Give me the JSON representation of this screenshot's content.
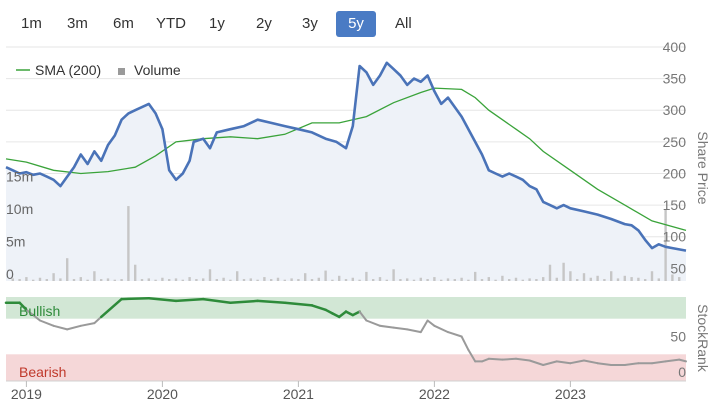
{
  "range_buttons": [
    {
      "label": "1m",
      "active": false
    },
    {
      "label": "3m",
      "active": false
    },
    {
      "label": "6m",
      "active": false
    },
    {
      "label": "YTD",
      "active": false
    },
    {
      "label": "1y",
      "active": false
    },
    {
      "label": "2y",
      "active": false
    },
    {
      "label": "3y",
      "active": false
    },
    {
      "label": "5y",
      "active": true
    },
    {
      "label": "All",
      "active": false
    }
  ],
  "colors": {
    "price_line": "#4a73b8",
    "sma_line": "#3aa33a",
    "volume_bar": "#c6c6c6",
    "bullish_band": "#d2e7d5",
    "bearish_band": "#f5d7d8",
    "stockrank_bullish": "#2e8b3a",
    "stockrank_other": "#9a9a9a",
    "active_button": "#4a7bc4"
  },
  "chart_data": {
    "type": "line",
    "legend": {
      "placement": "top-left",
      "entries": [
        {
          "label": "SMA (200)",
          "marker": "line",
          "color": "#3aa33a"
        },
        {
          "label": "Volume",
          "marker": "square",
          "color": "#9a9a9a"
        }
      ]
    },
    "x_axis": {
      "ticks": [
        "2019",
        "2020",
        "2021",
        "2022",
        "2023"
      ],
      "range": [
        2018.85,
        2023.85
      ]
    },
    "price_axis": {
      "label": "Share Price",
      "ticks": [
        50,
        100,
        150,
        200,
        250,
        300,
        350,
        400
      ],
      "range": [
        30,
        400
      ]
    },
    "volume_axis": {
      "ticks": [
        "0",
        "5m",
        "10m",
        "15m"
      ],
      "values": [
        0,
        5,
        10,
        15
      ],
      "unit": "m"
    },
    "stockrank_axis": {
      "label": "StockRank",
      "ticks": [
        0,
        50
      ],
      "range": [
        0,
        100
      ]
    },
    "bands": [
      {
        "label": "Bullish",
        "from": 70,
        "to": 100
      },
      {
        "label": "Bearish",
        "from": 0,
        "to": 30
      }
    ],
    "series": [
      {
        "name": "Price",
        "x": [
          2018.85,
          2018.9,
          2018.95,
          2019.0,
          2019.05,
          2019.1,
          2019.15,
          2019.2,
          2019.25,
          2019.3,
          2019.35,
          2019.4,
          2019.45,
          2019.5,
          2019.55,
          2019.6,
          2019.65,
          2019.7,
          2019.75,
          2019.8,
          2019.85,
          2019.9,
          2019.95,
          2020.0,
          2020.05,
          2020.1,
          2020.15,
          2020.2,
          2020.23,
          2020.3,
          2020.35,
          2020.4,
          2020.5,
          2020.6,
          2020.7,
          2020.8,
          2020.9,
          2021.0,
          2021.1,
          2021.2,
          2021.28,
          2021.35,
          2021.4,
          2021.45,
          2021.5,
          2021.55,
          2021.6,
          2021.65,
          2021.7,
          2021.75,
          2021.8,
          2021.85,
          2021.9,
          2021.95,
          2022.0,
          2022.05,
          2022.1,
          2022.15,
          2022.2,
          2022.25,
          2022.3,
          2022.35,
          2022.4,
          2022.45,
          2022.5,
          2022.55,
          2022.6,
          2022.65,
          2022.7,
          2022.75,
          2022.8,
          2022.85,
          2022.9,
          2022.95,
          2023.0,
          2023.1,
          2023.2,
          2023.3,
          2023.4,
          2023.45,
          2023.5,
          2023.55,
          2023.6,
          2023.65,
          2023.7,
          2023.75,
          2023.8,
          2023.85
        ],
        "values": [
          210,
          205,
          200,
          202,
          198,
          200,
          195,
          190,
          180,
          195,
          210,
          230,
          215,
          235,
          220,
          245,
          260,
          285,
          295,
          300,
          305,
          310,
          295,
          270,
          205,
          190,
          200,
          220,
          250,
          255,
          240,
          265,
          270,
          275,
          285,
          280,
          275,
          270,
          265,
          255,
          250,
          240,
          275,
          370,
          360,
          340,
          355,
          375,
          365,
          355,
          340,
          350,
          345,
          355,
          330,
          310,
          320,
          305,
          290,
          270,
          250,
          230,
          205,
          200,
          195,
          200,
          195,
          190,
          180,
          175,
          155,
          150,
          145,
          150,
          145,
          140,
          135,
          128,
          120,
          118,
          110,
          95,
          82,
          88,
          84,
          82,
          80,
          78
        ]
      },
      {
        "name": "SMA (200)",
        "x": [
          2018.85,
          2019.0,
          2019.2,
          2019.4,
          2019.6,
          2019.8,
          2019.95,
          2020.1,
          2020.3,
          2020.5,
          2020.7,
          2020.9,
          2021.1,
          2021.3,
          2021.5,
          2021.7,
          2021.9,
          2022.0,
          2022.2,
          2022.3,
          2022.4,
          2022.5,
          2022.6,
          2022.7,
          2022.8,
          2023.0,
          2023.2,
          2023.4,
          2023.6,
          2023.85
        ],
        "values": [
          223,
          218,
          205,
          200,
          203,
          210,
          228,
          250,
          255,
          258,
          255,
          262,
          280,
          280,
          290,
          312,
          328,
          335,
          333,
          320,
          300,
          285,
          270,
          255,
          235,
          205,
          175,
          150,
          125,
          110
        ]
      },
      {
        "name": "StockRank",
        "x": [
          2018.85,
          2018.95,
          2019.0,
          2019.1,
          2019.2,
          2019.3,
          2019.4,
          2019.5,
          2019.55,
          2019.7,
          2019.9,
          2020.1,
          2020.3,
          2020.5,
          2020.7,
          2020.9,
          2021.1,
          2021.2,
          2021.25,
          2021.3,
          2021.35,
          2021.4,
          2021.45,
          2021.5,
          2021.6,
          2021.7,
          2021.8,
          2021.9,
          2021.95,
          2022.0,
          2022.1,
          2022.2,
          2022.25,
          2022.3,
          2022.35,
          2022.4,
          2022.5,
          2022.6,
          2022.7,
          2022.8,
          2022.9,
          2023.0,
          2023.1,
          2023.2,
          2023.3,
          2023.4,
          2023.5,
          2023.6,
          2023.7,
          2023.8,
          2023.85
        ],
        "values": [
          88,
          88,
          80,
          68,
          62,
          58,
          62,
          65,
          72,
          92,
          93,
          90,
          92,
          88,
          90,
          88,
          85,
          80,
          76,
          72,
          78,
          74,
          78,
          68,
          62,
          60,
          58,
          55,
          68,
          62,
          55,
          50,
          35,
          22,
          22,
          25,
          24,
          25,
          23,
          18,
          22,
          20,
          23,
          20,
          18,
          18,
          20,
          20,
          22,
          24,
          22
        ]
      }
    ],
    "volume": {
      "x": [
        2018.9,
        2018.95,
        2019.0,
        2019.05,
        2019.1,
        2019.15,
        2019.2,
        2019.25,
        2019.3,
        2019.35,
        2019.4,
        2019.45,
        2019.5,
        2019.55,
        2019.6,
        2019.65,
        2019.7,
        2019.75,
        2019.8,
        2019.85,
        2019.9,
        2019.95,
        2020.0,
        2020.05,
        2020.1,
        2020.15,
        2020.2,
        2020.25,
        2020.3,
        2020.35,
        2020.4,
        2020.45,
        2020.5,
        2020.55,
        2020.6,
        2020.65,
        2020.7,
        2020.75,
        2020.8,
        2020.85,
        2020.9,
        2020.95,
        2021.0,
        2021.05,
        2021.1,
        2021.15,
        2021.2,
        2021.25,
        2021.3,
        2021.35,
        2021.4,
        2021.45,
        2021.5,
        2021.55,
        2021.6,
        2021.65,
        2021.7,
        2021.75,
        2021.8,
        2021.85,
        2021.9,
        2021.95,
        2022.0,
        2022.05,
        2022.1,
        2022.15,
        2022.2,
        2022.25,
        2022.3,
        2022.35,
        2022.4,
        2022.45,
        2022.5,
        2022.55,
        2022.6,
        2022.65,
        2022.7,
        2022.75,
        2022.8,
        2022.85,
        2022.9,
        2022.95,
        2023.0,
        2023.05,
        2023.1,
        2023.15,
        2023.2,
        2023.25,
        2023.3,
        2023.35,
        2023.4,
        2023.45,
        2023.5,
        2023.55,
        2023.6,
        2023.65,
        2023.7,
        2023.75,
        2023.8
      ],
      "values": [
        0.4,
        0.3,
        0.6,
        0.2,
        0.5,
        0.3,
        1.2,
        0.4,
        3.5,
        0.3,
        0.6,
        0.2,
        1.5,
        0.3,
        0.4,
        0.2,
        0.3,
        11.5,
        2.5,
        0.3,
        0.4,
        0.2,
        0.5,
        0.3,
        0.4,
        0.2,
        0.6,
        0.3,
        0.4,
        1.8,
        0.3,
        0.5,
        0.2,
        1.5,
        0.3,
        0.4,
        0.2,
        0.6,
        0.3,
        0.5,
        0.2,
        0.4,
        0.3,
        1.2,
        0.3,
        0.5,
        1.6,
        0.2,
        0.8,
        0.3,
        0.5,
        0.2,
        1.4,
        0.3,
        0.6,
        0.2,
        1.8,
        0.3,
        0.4,
        0.2,
        0.5,
        0.3,
        0.6,
        0.2,
        0.4,
        0.3,
        0.5,
        0.2,
        1.4,
        0.3,
        0.6,
        0.2,
        0.8,
        0.3,
        0.5,
        0.2,
        0.4,
        0.3,
        0.6,
        2.5,
        0.5,
        2.8,
        1.5,
        0.3,
        1.2,
        0.5,
        0.8,
        0.3,
        1.5,
        0.4,
        0.8,
        0.6,
        0.5,
        0.3,
        1.5,
        0.4,
        11.0,
        1.0,
        0.6
      ]
    }
  }
}
